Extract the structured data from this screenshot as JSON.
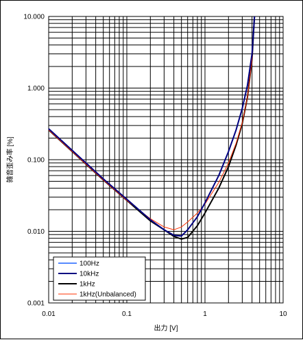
{
  "chart_data": {
    "type": "line",
    "x_scale": "log",
    "y_scale": "log",
    "xlim": [
      0.01,
      10
    ],
    "ylim": [
      0.001,
      10
    ],
    "xlabel": "出力 [V]",
    "ylabel": "雑音歪み率 [%]",
    "x_tick_labels": [
      "0.01",
      "0.1",
      "1",
      "10"
    ],
    "y_tick_labels": [
      "0.001",
      "0.010",
      "0.100",
      "1.000",
      "10.000"
    ],
    "grid": true,
    "legend_position": "bottom-left",
    "series": [
      {
        "name": "100Hz",
        "color": "#1e64ff",
        "points": [
          [
            0.01,
            0.27
          ],
          [
            0.02,
            0.135
          ],
          [
            0.05,
            0.054
          ],
          [
            0.1,
            0.028
          ],
          [
            0.2,
            0.0145
          ],
          [
            0.3,
            0.0105
          ],
          [
            0.4,
            0.0088
          ],
          [
            0.5,
            0.0086
          ],
          [
            0.6,
            0.0105
          ],
          [
            0.8,
            0.016
          ],
          [
            1,
            0.025
          ],
          [
            1.5,
            0.06
          ],
          [
            2,
            0.13
          ],
          [
            2.5,
            0.26
          ],
          [
            3,
            0.52
          ],
          [
            3.5,
            1.1
          ],
          [
            4,
            3.0
          ],
          [
            4.3,
            10
          ]
        ]
      },
      {
        "name": "10kHz",
        "color": "#000080",
        "points": [
          [
            0.01,
            0.27
          ],
          [
            0.02,
            0.135
          ],
          [
            0.05,
            0.054
          ],
          [
            0.1,
            0.028
          ],
          [
            0.2,
            0.0145
          ],
          [
            0.3,
            0.0105
          ],
          [
            0.4,
            0.0088
          ],
          [
            0.5,
            0.0086
          ],
          [
            0.6,
            0.0105
          ],
          [
            0.8,
            0.016
          ],
          [
            1,
            0.025
          ],
          [
            1.5,
            0.06
          ],
          [
            2,
            0.13
          ],
          [
            2.5,
            0.26
          ],
          [
            3,
            0.52
          ],
          [
            3.5,
            1.1
          ],
          [
            4,
            3.0
          ],
          [
            4.3,
            10
          ]
        ]
      },
      {
        "name": "1kHz",
        "color": "#000000",
        "points": [
          [
            0.01,
            0.26
          ],
          [
            0.02,
            0.13
          ],
          [
            0.05,
            0.052
          ],
          [
            0.1,
            0.027
          ],
          [
            0.2,
            0.014
          ],
          [
            0.3,
            0.0105
          ],
          [
            0.4,
            0.0085
          ],
          [
            0.5,
            0.0078
          ],
          [
            0.6,
            0.0082
          ],
          [
            0.8,
            0.012
          ],
          [
            1,
            0.018
          ],
          [
            1.5,
            0.04
          ],
          [
            2,
            0.08
          ],
          [
            2.5,
            0.16
          ],
          [
            3,
            0.32
          ],
          [
            3.5,
            0.75
          ],
          [
            4,
            2.5
          ],
          [
            4.3,
            10
          ]
        ]
      },
      {
        "name": "1kHz(Unbalanced)",
        "color": "#ff3000",
        "points": [
          [
            0.01,
            0.26
          ],
          [
            0.02,
            0.13
          ],
          [
            0.05,
            0.052
          ],
          [
            0.1,
            0.027
          ],
          [
            0.2,
            0.015
          ],
          [
            0.3,
            0.0115
          ],
          [
            0.4,
            0.0105
          ],
          [
            0.5,
            0.0115
          ],
          [
            0.6,
            0.0135
          ],
          [
            0.8,
            0.018
          ],
          [
            1,
            0.024
          ],
          [
            1.5,
            0.048
          ],
          [
            2,
            0.09
          ],
          [
            2.5,
            0.17
          ],
          [
            3,
            0.33
          ],
          [
            3.5,
            0.75
          ],
          [
            4,
            2.5
          ],
          [
            4.3,
            10
          ]
        ]
      }
    ]
  }
}
